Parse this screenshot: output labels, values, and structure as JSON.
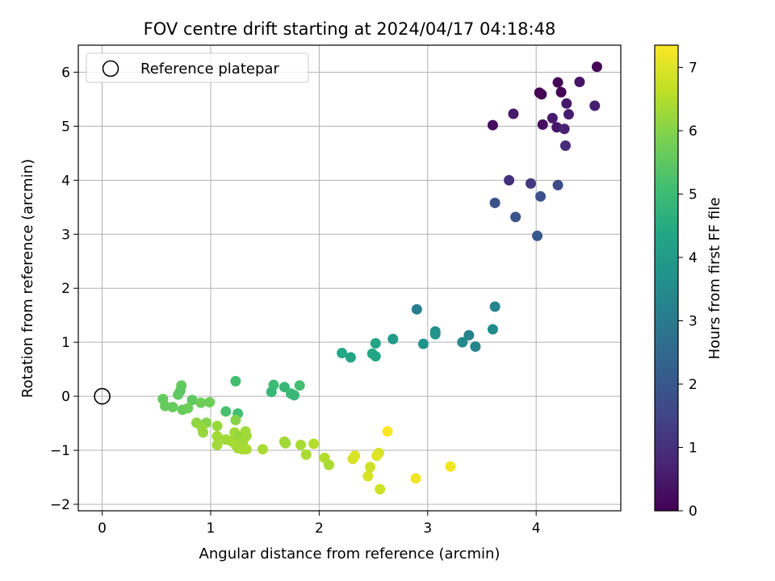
{
  "chart_data": {
    "type": "scatter",
    "title": "FOV centre drift starting at 2024/04/17 04:18:48",
    "xlabel": "Angular distance from reference (arcmin)",
    "ylabel": "Rotation from reference (arcmin)",
    "xlim": [
      -0.22,
      4.78
    ],
    "ylim": [
      -2.12,
      6.5
    ],
    "xticks": [
      "0",
      "1",
      "2",
      "3",
      "4"
    ],
    "yticks": [
      "−2",
      "−1",
      "0",
      "1",
      "2",
      "3",
      "4",
      "5",
      "6"
    ],
    "grid": true,
    "legend": {
      "placement": "top-left",
      "entries": [
        "Reference platepar"
      ]
    },
    "reference_point": {
      "x": 0,
      "y": 0
    },
    "colorbar": {
      "label": "Hours from first FF file",
      "min": 0,
      "max": 7.35,
      "ticks": [
        "0",
        "1",
        "2",
        "3",
        "4",
        "5",
        "6",
        "7"
      ],
      "colormap": "viridis"
    },
    "points": [
      {
        "x": 4.56,
        "y": 6.1,
        "h": 0.1
      },
      {
        "x": 4.4,
        "y": 5.82,
        "h": 0.4
      },
      {
        "x": 4.2,
        "y": 5.81,
        "h": 0.1
      },
      {
        "x": 4.03,
        "y": 5.62,
        "h": 0.05
      },
      {
        "x": 4.05,
        "y": 5.59,
        "h": 0.1
      },
      {
        "x": 4.23,
        "y": 5.63,
        "h": 0.05
      },
      {
        "x": 4.28,
        "y": 5.42,
        "h": 0.5
      },
      {
        "x": 4.54,
        "y": 5.38,
        "h": 0.6
      },
      {
        "x": 3.79,
        "y": 5.23,
        "h": 0.5
      },
      {
        "x": 4.3,
        "y": 5.22,
        "h": 0.6
      },
      {
        "x": 4.15,
        "y": 5.15,
        "h": 0.55
      },
      {
        "x": 4.06,
        "y": 5.03,
        "h": 0.3
      },
      {
        "x": 3.6,
        "y": 5.02,
        "h": 0.25
      },
      {
        "x": 4.19,
        "y": 4.98,
        "h": 0.45
      },
      {
        "x": 4.26,
        "y": 4.95,
        "h": 0.7
      },
      {
        "x": 4.27,
        "y": 4.64,
        "h": 0.9
      },
      {
        "x": 3.75,
        "y": 4.0,
        "h": 1.0
      },
      {
        "x": 3.95,
        "y": 3.94,
        "h": 1.2
      },
      {
        "x": 4.2,
        "y": 3.91,
        "h": 1.7
      },
      {
        "x": 4.04,
        "y": 3.7,
        "h": 1.8
      },
      {
        "x": 3.62,
        "y": 3.58,
        "h": 1.8
      },
      {
        "x": 3.81,
        "y": 3.32,
        "h": 1.85
      },
      {
        "x": 4.01,
        "y": 2.97,
        "h": 2.0
      },
      {
        "x": 3.62,
        "y": 1.66,
        "h": 3.3
      },
      {
        "x": 2.9,
        "y": 1.61,
        "h": 3.1
      },
      {
        "x": 3.07,
        "y": 1.2,
        "h": 3.6
      },
      {
        "x": 3.6,
        "y": 1.24,
        "h": 3.5
      },
      {
        "x": 3.38,
        "y": 1.13,
        "h": 3.2
      },
      {
        "x": 3.07,
        "y": 1.15,
        "h": 3.8
      },
      {
        "x": 2.68,
        "y": 1.06,
        "h": 4.0
      },
      {
        "x": 3.32,
        "y": 1.0,
        "h": 3.4
      },
      {
        "x": 2.52,
        "y": 0.98,
        "h": 4.3
      },
      {
        "x": 2.96,
        "y": 0.97,
        "h": 3.8
      },
      {
        "x": 3.44,
        "y": 0.92,
        "h": 3.3
      },
      {
        "x": 2.21,
        "y": 0.8,
        "h": 4.4
      },
      {
        "x": 2.49,
        "y": 0.79,
        "h": 4.4
      },
      {
        "x": 2.52,
        "y": 0.74,
        "h": 4.3
      },
      {
        "x": 2.29,
        "y": 0.72,
        "h": 4.3
      },
      {
        "x": 1.23,
        "y": 0.28,
        "h": 5.1
      },
      {
        "x": 1.58,
        "y": 0.21,
        "h": 5.0
      },
      {
        "x": 1.82,
        "y": 0.2,
        "h": 5.1
      },
      {
        "x": 1.68,
        "y": 0.17,
        "h": 4.9
      },
      {
        "x": 1.56,
        "y": 0.08,
        "h": 4.9
      },
      {
        "x": 1.74,
        "y": 0.05,
        "h": 5.0
      },
      {
        "x": 1.77,
        "y": 0.02,
        "h": 4.9
      },
      {
        "x": 1.25,
        "y": -0.32,
        "h": 5.1
      },
      {
        "x": 1.14,
        "y": -0.28,
        "h": 5.2
      },
      {
        "x": 0.73,
        "y": 0.2,
        "h": 5.6
      },
      {
        "x": 0.72,
        "y": 0.1,
        "h": 5.5
      },
      {
        "x": 0.7,
        "y": 0.03,
        "h": 5.5
      },
      {
        "x": 0.56,
        "y": -0.05,
        "h": 5.6
      },
      {
        "x": 0.83,
        "y": -0.07,
        "h": 5.5
      },
      {
        "x": 0.58,
        "y": -0.18,
        "h": 5.6
      },
      {
        "x": 0.65,
        "y": -0.2,
        "h": 5.6
      },
      {
        "x": 0.74,
        "y": -0.25,
        "h": 5.6
      },
      {
        "x": 0.79,
        "y": -0.22,
        "h": 5.7
      },
      {
        "x": 0.91,
        "y": -0.12,
        "h": 5.7
      },
      {
        "x": 0.99,
        "y": -0.11,
        "h": 5.7
      },
      {
        "x": 1.23,
        "y": -0.44,
        "h": 6.0
      },
      {
        "x": 0.87,
        "y": -0.49,
        "h": 6.1
      },
      {
        "x": 0.96,
        "y": -0.49,
        "h": 6.0
      },
      {
        "x": 1.06,
        "y": -0.55,
        "h": 6.2
      },
      {
        "x": 0.92,
        "y": -0.58,
        "h": 6.2
      },
      {
        "x": 0.93,
        "y": -0.67,
        "h": 6.2
      },
      {
        "x": 1.22,
        "y": -0.67,
        "h": 6.3
      },
      {
        "x": 1.32,
        "y": -0.65,
        "h": 6.3
      },
      {
        "x": 1.06,
        "y": -0.74,
        "h": 6.3
      },
      {
        "x": 1.26,
        "y": -0.75,
        "h": 6.2
      },
      {
        "x": 1.33,
        "y": -0.73,
        "h": 6.3
      },
      {
        "x": 1.14,
        "y": -0.8,
        "h": 6.3
      },
      {
        "x": 1.19,
        "y": -0.83,
        "h": 6.3
      },
      {
        "x": 1.3,
        "y": -0.83,
        "h": 6.3
      },
      {
        "x": 1.06,
        "y": -0.9,
        "h": 6.3
      },
      {
        "x": 1.23,
        "y": -0.9,
        "h": 6.4
      },
      {
        "x": 1.28,
        "y": -0.92,
        "h": 6.3
      },
      {
        "x": 1.25,
        "y": -0.96,
        "h": 6.3
      },
      {
        "x": 1.29,
        "y": -0.98,
        "h": 6.4
      },
      {
        "x": 1.33,
        "y": -0.98,
        "h": 6.4
      },
      {
        "x": 1.48,
        "y": -0.98,
        "h": 6.4
      },
      {
        "x": 1.68,
        "y": -0.84,
        "h": 6.3
      },
      {
        "x": 1.69,
        "y": -0.87,
        "h": 6.3
      },
      {
        "x": 1.83,
        "y": -0.9,
        "h": 6.4
      },
      {
        "x": 1.95,
        "y": -0.88,
        "h": 6.5
      },
      {
        "x": 1.88,
        "y": -1.08,
        "h": 6.4
      },
      {
        "x": 2.05,
        "y": -1.14,
        "h": 6.5
      },
      {
        "x": 2.09,
        "y": -1.27,
        "h": 6.4
      },
      {
        "x": 2.33,
        "y": -1.1,
        "h": 7.0
      },
      {
        "x": 2.31,
        "y": -1.16,
        "h": 6.9
      },
      {
        "x": 2.55,
        "y": -1.05,
        "h": 6.9
      },
      {
        "x": 2.53,
        "y": -1.1,
        "h": 7.0
      },
      {
        "x": 2.47,
        "y": -1.31,
        "h": 6.8
      },
      {
        "x": 2.45,
        "y": -1.48,
        "h": 6.9
      },
      {
        "x": 2.56,
        "y": -1.72,
        "h": 6.8
      },
      {
        "x": 2.63,
        "y": -0.65,
        "h": 7.3
      },
      {
        "x": 3.21,
        "y": -1.3,
        "h": 7.2
      },
      {
        "x": 2.89,
        "y": -1.52,
        "h": 7.2
      }
    ]
  }
}
